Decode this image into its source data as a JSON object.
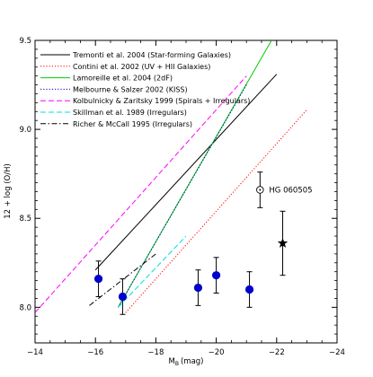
{
  "chart_data": {
    "type": "line",
    "xlabel": "M",
    "xlabel_subscript": "B",
    "xlabel_unit": "(mag)",
    "ylabel": "12 + log (O/H)",
    "xlim": [
      -14,
      -24
    ],
    "ylim": [
      7.8,
      9.5
    ],
    "x_ticks": [
      -14,
      -16,
      -18,
      -20,
      -22,
      -24
    ],
    "x_tick_labels": [
      "−14",
      "−16",
      "−18",
      "−20",
      "−22",
      "−24"
    ],
    "y_ticks": [
      8.0,
      8.5,
      9.0,
      9.5
    ],
    "y_tick_labels": [
      "8.0",
      "8.5",
      "9.0",
      "9.5"
    ],
    "legend_position": "top-left",
    "series": [
      {
        "name": "Tremonti et al. 2004 (Star-forming Galaxies)",
        "color": "#000000",
        "dash": "solid",
        "x": [
          -16.0,
          -22.0
        ],
        "y": [
          8.21,
          9.31
        ]
      },
      {
        "name": "Contini et al. 2002 (UV + HII Galaxies)",
        "color": "#ff0000",
        "dash": "dotted",
        "x": [
          -17.0,
          -23.0
        ],
        "y": [
          7.97,
          9.11
        ]
      },
      {
        "name": "Lamoreille et al. 2004 (2dF)",
        "color": "#00cc00",
        "dash": "solid",
        "x": [
          -16.75,
          -22.0
        ],
        "y": [
          8.0,
          9.55
        ]
      },
      {
        "name": "Melbourne & Salzer 2002 (KISS)",
        "color": "#0000cc",
        "dash": "dotted",
        "x": [
          -16.75,
          -21.0
        ],
        "y": [
          8.0,
          9.25
        ]
      },
      {
        "name": "Kolbulnicky & Zaritsky 1999 (Spirals + Irregulars)",
        "color": "#ff00ff",
        "dash": "dashed",
        "x": [
          -14.0,
          -21.0
        ],
        "y": [
          7.97,
          9.3
        ]
      },
      {
        "name": "Skillman et al. 1989 (Irregulars)",
        "color": "#00dddd",
        "dash": "dashed",
        "x": [
          -16.75,
          -19.0
        ],
        "y": [
          8.0,
          8.4
        ]
      },
      {
        "name": "Richer & McCall 1995 (Irregulars)",
        "color": "#000000",
        "dash": "dashdot",
        "x": [
          -15.8,
          -18.0
        ],
        "y": [
          8.01,
          8.3
        ]
      }
    ],
    "points": [
      {
        "x": -16.1,
        "y": 8.16,
        "yerr": 0.1,
        "marker": "circle",
        "color": "#0000cc"
      },
      {
        "x": -16.9,
        "y": 8.06,
        "yerr": 0.1,
        "marker": "circle",
        "color": "#0000cc"
      },
      {
        "x": -19.4,
        "y": 8.11,
        "yerr": 0.1,
        "marker": "circle",
        "color": "#0000cc"
      },
      {
        "x": -20.0,
        "y": 8.18,
        "yerr": 0.1,
        "marker": "circle",
        "color": "#0000cc"
      },
      {
        "x": -21.1,
        "y": 8.1,
        "yerr": 0.1,
        "marker": "circle",
        "color": "#0000cc"
      },
      {
        "x": -22.2,
        "y": 8.36,
        "yerr": 0.18,
        "marker": "star",
        "color": "#000000"
      },
      {
        "x": -21.45,
        "y": 8.66,
        "yerr": 0.1,
        "marker": "sun",
        "color": "#000000"
      }
    ],
    "annotations": [
      {
        "text": "HG 060505",
        "x": -21.75,
        "y": 8.66
      }
    ]
  }
}
